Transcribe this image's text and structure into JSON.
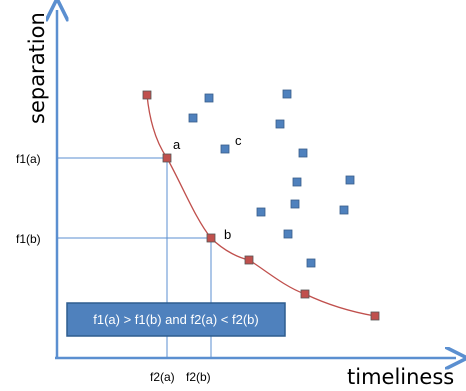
{
  "axes": {
    "y_title": "separation",
    "x_title": "timeliness",
    "y_ticks": [
      "f1(a)",
      "f1(b)"
    ],
    "x_ticks": [
      "f2(a)",
      "f2(b)"
    ]
  },
  "point_labels": {
    "a": "a",
    "b": "b",
    "c": "c"
  },
  "caption": "f1(a) > f1(b) and f2(a) < f2(b)",
  "colors": {
    "axis": "#5b8fd0",
    "curve": "#c0504d",
    "pareto_point": "#c0504d",
    "dominated_point": "#4f81bd",
    "guide_line": "#5b8fd0",
    "caption_box": "#4f81bd",
    "caption_border": "#2f5d8f"
  }
}
